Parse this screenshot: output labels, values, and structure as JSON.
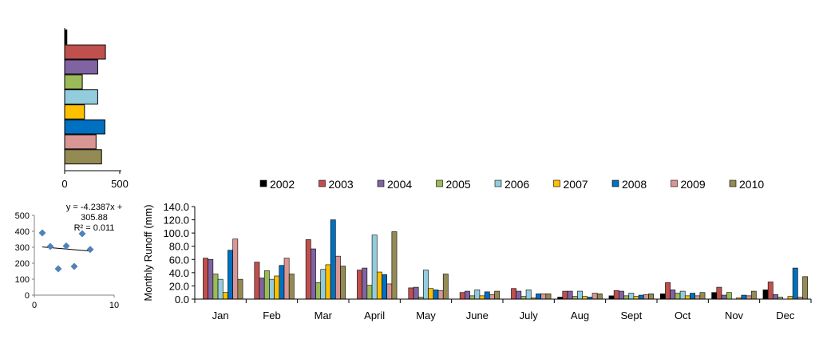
{
  "colors": {
    "2002": "#000000",
    "2003": "#c0504d",
    "2004": "#8064a2",
    "2005": "#9bbb59",
    "2006": "#93cddd",
    "2007": "#ffc000",
    "2008": "#0070c0",
    "2009": "#d99694",
    "2010": "#948a54",
    "scatter_point": "#4f81bd"
  },
  "chart_data": [
    {
      "type": "bar",
      "orientation": "horizontal",
      "categories": [
        "2002",
        "2003",
        "2004",
        "2005",
        "2006",
        "2007",
        "2008",
        "2009",
        "2010"
      ],
      "values": [
        20,
        370,
        300,
        160,
        300,
        180,
        365,
        285,
        335
      ],
      "xlim": [
        0,
        500
      ],
      "xticks": [
        "0",
        "500"
      ]
    },
    {
      "type": "scatter",
      "points": [
        {
          "x": 1,
          "y": 390
        },
        {
          "x": 2,
          "y": 305
        },
        {
          "x": 3,
          "y": 165
        },
        {
          "x": 4,
          "y": 308
        },
        {
          "x": 5,
          "y": 180
        },
        {
          "x": 6,
          "y": 385
        },
        {
          "x": 7,
          "y": 286
        }
      ],
      "trendline": {
        "slope": -4.2387,
        "intercept": 305.88
      },
      "equation_lines": [
        "y = -4.2387x +",
        "305.88",
        "R² = 0.011"
      ],
      "xlim": [
        0,
        10
      ],
      "ylim": [
        0,
        500
      ],
      "xticks": [
        "0",
        "10"
      ],
      "yticks": [
        "0",
        "100",
        "200",
        "300",
        "400",
        "500"
      ]
    },
    {
      "type": "bar",
      "ylabel": "Monthly  Runoff (mm)",
      "ylim": [
        0,
        140
      ],
      "yticks": [
        "0.0",
        "20.0",
        "40.0",
        "60.0",
        "80.0",
        "100.0",
        "120.0",
        "140.0"
      ],
      "categories": [
        "Jan",
        "Feb",
        "Mar",
        "April",
        "May",
        "June",
        "July",
        "Aug",
        "Sept",
        "Oct",
        "Nov",
        "Dec"
      ],
      "legend_position": "top",
      "series": [
        {
          "name": "2002",
          "values": [
            0,
            0,
            0,
            0,
            0,
            0,
            0,
            3,
            5,
            8,
            10,
            14
          ]
        },
        {
          "name": "2003",
          "values": [
            62,
            56,
            90,
            44,
            17,
            10,
            16,
            12,
            13,
            25,
            18,
            26
          ]
        },
        {
          "name": "2004",
          "values": [
            60,
            32,
            76,
            47,
            18,
            12,
            12,
            12,
            12,
            14,
            6,
            7
          ]
        },
        {
          "name": "2005",
          "values": [
            38,
            43,
            25,
            21,
            3,
            5,
            4,
            4,
            5,
            9,
            10,
            3
          ]
        },
        {
          "name": "2006",
          "values": [
            30,
            30,
            45,
            97,
            44,
            14,
            14,
            12,
            9,
            12,
            0,
            0
          ]
        },
        {
          "name": "2007",
          "values": [
            10,
            35,
            52,
            41,
            16,
            5,
            2,
            4,
            4,
            5,
            2,
            4
          ]
        },
        {
          "name": "2008",
          "values": [
            74,
            51,
            120,
            37,
            14,
            11,
            8,
            3,
            6,
            9,
            6,
            47
          ]
        },
        {
          "name": "2009",
          "values": [
            91,
            62,
            65,
            23,
            13,
            7,
            8,
            9,
            7,
            5,
            5,
            3
          ]
        },
        {
          "name": "2010",
          "values": [
            30,
            38,
            50,
            102,
            38,
            12,
            8,
            8,
            8,
            10,
            12,
            34
          ]
        }
      ]
    }
  ]
}
